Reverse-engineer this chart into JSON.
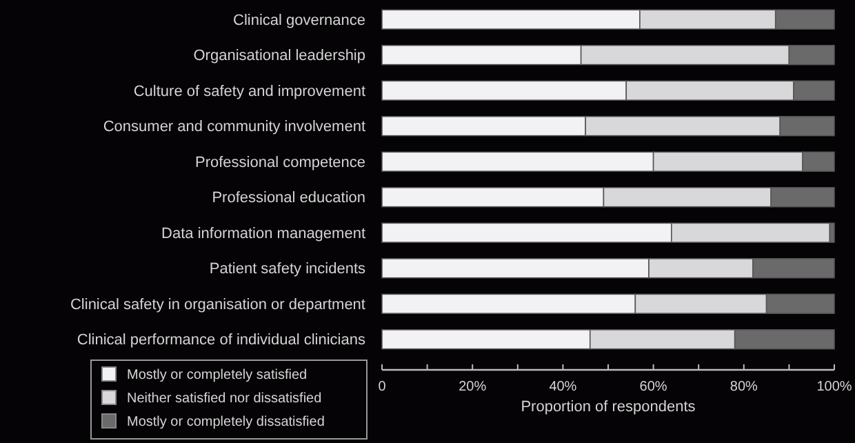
{
  "chart_data": {
    "type": "bar",
    "orientation": "horizontal",
    "stacked": true,
    "xlabel": "Proportion of respondents",
    "categories": [
      "Clinical governance",
      "Organisational leadership",
      "Culture of safety and improvement",
      "Consumer and community involvement",
      "Professional competence",
      "Professional education",
      "Data information management",
      "Patient safety incidents",
      "Clinical safety in organisation or department",
      "Clinical performance of individual clinicians"
    ],
    "series": [
      {
        "name": "Mostly or completely satisfied",
        "color": "#f2f2f4",
        "values": [
          57,
          44,
          54,
          45,
          60,
          49,
          64,
          59,
          56,
          46
        ]
      },
      {
        "name": "Neither satisfied nor dissatisfied",
        "color": "#d8d8da",
        "values": [
          30,
          46,
          37,
          43,
          33,
          37,
          35,
          23,
          29,
          32
        ]
      },
      {
        "name": "Mostly or completely dissatisfied",
        "color": "#6a6a6a",
        "values": [
          13,
          10,
          9,
          12,
          7,
          14,
          1,
          18,
          15,
          22
        ]
      }
    ],
    "xlim": [
      0,
      100
    ],
    "xticks": [
      {
        "value": 0,
        "label": "0"
      },
      {
        "value": 10,
        "label": null
      },
      {
        "value": 20,
        "label": "20%"
      },
      {
        "value": 30,
        "label": null
      },
      {
        "value": 40,
        "label": "40%"
      },
      {
        "value": 50,
        "label": null
      },
      {
        "value": 60,
        "label": "60%"
      },
      {
        "value": 70,
        "label": null
      },
      {
        "value": 80,
        "label": "80%"
      },
      {
        "value": 90,
        "label": null
      },
      {
        "value": 100,
        "label": "100%"
      }
    ],
    "legend": "bottom left",
    "grid": false
  }
}
